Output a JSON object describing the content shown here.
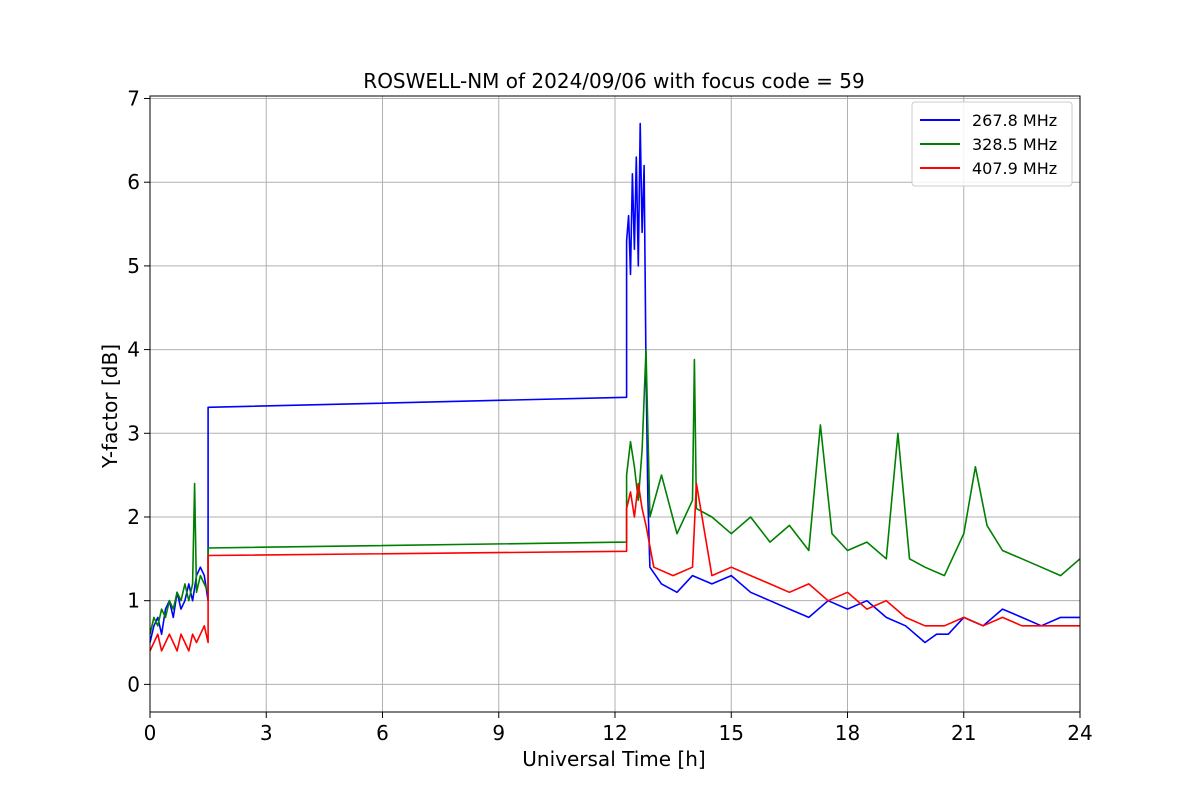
{
  "chart_data": {
    "type": "line",
    "title": "ROSWELL-NM of 2024/09/06 with focus code = 59",
    "xlabel": "Universal Time [h]",
    "ylabel": "Y-factor [dB]",
    "xlim": [
      0,
      24
    ],
    "ylim": [
      -0.33,
      7.03
    ],
    "xticks": [
      0,
      3,
      6,
      9,
      12,
      15,
      18,
      21,
      24
    ],
    "yticks": [
      0,
      1,
      2,
      3,
      4,
      5,
      6,
      7
    ],
    "grid": true,
    "legend_position": "top-right",
    "series": [
      {
        "name": "267.8 MHz",
        "color": "#0000ff",
        "x": [
          0,
          0.1,
          0.2,
          0.3,
          0.4,
          0.5,
          0.6,
          0.7,
          0.8,
          0.9,
          1.0,
          1.1,
          1.2,
          1.3,
          1.4,
          1.5,
          1.5,
          12.3,
          12.3,
          12.35,
          12.4,
          12.45,
          12.5,
          12.55,
          12.6,
          12.65,
          12.7,
          12.75,
          12.8,
          12.85,
          12.9,
          13.2,
          13.6,
          14.0,
          14.5,
          15.0,
          15.5,
          16.0,
          16.5,
          17.0,
          17.5,
          18.0,
          18.5,
          19.0,
          19.5,
          20.0,
          20.3,
          20.6,
          21.0,
          21.5,
          22.0,
          22.5,
          23.0,
          23.5,
          24.0
        ],
        "y": [
          0.5,
          0.7,
          0.8,
          0.6,
          0.9,
          1.0,
          0.8,
          1.1,
          0.9,
          1.0,
          1.2,
          1.0,
          1.3,
          1.4,
          1.3,
          1.0,
          3.31,
          3.43,
          5.3,
          5.6,
          4.9,
          6.1,
          5.2,
          6.3,
          5.0,
          6.7,
          5.4,
          6.2,
          3.8,
          2.2,
          1.4,
          1.2,
          1.1,
          1.3,
          1.2,
          1.3,
          1.1,
          1.0,
          0.9,
          0.8,
          1.0,
          0.9,
          1.0,
          0.8,
          0.7,
          0.5,
          0.6,
          0.6,
          0.8,
          0.7,
          0.9,
          0.8,
          0.7,
          0.8,
          0.8
        ]
      },
      {
        "name": "328.5 MHz",
        "color": "#008000",
        "x": [
          0,
          0.1,
          0.2,
          0.3,
          0.4,
          0.5,
          0.6,
          0.7,
          0.8,
          0.9,
          1.0,
          1.1,
          1.15,
          1.2,
          1.3,
          1.4,
          1.5,
          1.5,
          12.3,
          12.3,
          12.4,
          12.5,
          12.6,
          12.7,
          12.8,
          12.9,
          13.2,
          13.6,
          14.0,
          14.05,
          14.1,
          14.5,
          15.0,
          15.5,
          16.0,
          16.5,
          17.0,
          17.3,
          17.6,
          18.0,
          18.5,
          19.0,
          19.3,
          19.6,
          20.0,
          20.5,
          21.0,
          21.3,
          21.6,
          22.0,
          22.5,
          23.0,
          23.5,
          24.0
        ],
        "y": [
          0.6,
          0.8,
          0.7,
          0.9,
          0.8,
          1.0,
          0.9,
          1.1,
          1.0,
          1.2,
          1.0,
          1.2,
          2.4,
          1.1,
          1.3,
          1.2,
          1.1,
          1.63,
          1.7,
          2.5,
          2.9,
          2.6,
          2.2,
          2.8,
          4.0,
          2.0,
          2.5,
          1.8,
          2.2,
          3.88,
          2.1,
          2.0,
          1.8,
          2.0,
          1.7,
          1.9,
          1.6,
          3.1,
          1.8,
          1.6,
          1.7,
          1.5,
          3.0,
          1.5,
          1.4,
          1.3,
          1.8,
          2.6,
          1.9,
          1.6,
          1.5,
          1.4,
          1.3,
          1.5
        ]
      },
      {
        "name": "407.9 MHz",
        "color": "#ff0000",
        "x": [
          0,
          0.1,
          0.2,
          0.3,
          0.4,
          0.5,
          0.6,
          0.7,
          0.8,
          0.9,
          1.0,
          1.1,
          1.2,
          1.3,
          1.4,
          1.5,
          1.5,
          12.3,
          12.3,
          12.4,
          12.5,
          12.6,
          12.7,
          12.8,
          13.0,
          13.5,
          14.0,
          14.1,
          14.5,
          15.0,
          15.5,
          16.0,
          16.5,
          17.0,
          17.5,
          18.0,
          18.5,
          19.0,
          19.5,
          20.0,
          20.5,
          21.0,
          21.5,
          22.0,
          22.5,
          23.0,
          23.5,
          24.0
        ],
        "y": [
          0.4,
          0.5,
          0.6,
          0.4,
          0.5,
          0.6,
          0.5,
          0.4,
          0.6,
          0.5,
          0.4,
          0.6,
          0.5,
          0.6,
          0.7,
          0.5,
          1.54,
          1.59,
          2.1,
          2.3,
          2.0,
          2.4,
          2.1,
          1.9,
          1.4,
          1.3,
          1.4,
          2.4,
          1.3,
          1.4,
          1.3,
          1.2,
          1.1,
          1.2,
          1.0,
          1.1,
          0.9,
          1.0,
          0.8,
          0.7,
          0.7,
          0.8,
          0.7,
          0.8,
          0.7,
          0.7,
          0.7,
          0.7
        ]
      }
    ]
  }
}
